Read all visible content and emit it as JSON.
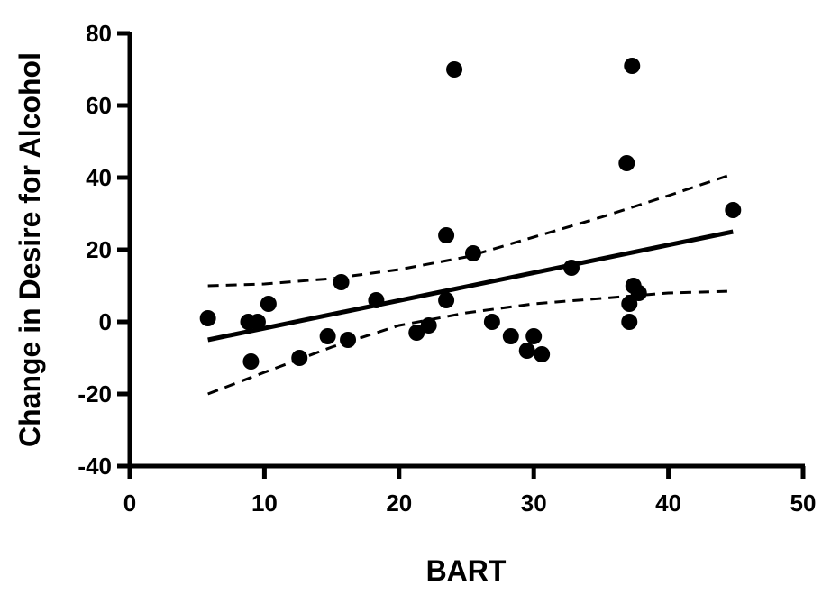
{
  "chart_data": {
    "type": "scatter",
    "xlabel": "BART",
    "ylabel": "Change in Desire for Alcohol",
    "xlim": [
      0,
      50
    ],
    "ylim": [
      -40,
      80
    ],
    "x_ticks": [
      0,
      10,
      20,
      30,
      40,
      50
    ],
    "y_ticks": [
      -40,
      -20,
      0,
      20,
      40,
      60,
      80
    ],
    "x_tick_labels": [
      "0",
      "10",
      "20",
      "30",
      "40",
      "50"
    ],
    "y_tick_labels": [
      "-40",
      "-20",
      "0",
      "20",
      "40",
      "60",
      "80"
    ],
    "grid": false,
    "points": [
      {
        "x": 5.8,
        "y": 1
      },
      {
        "x": 8.8,
        "y": 0
      },
      {
        "x": 9.5,
        "y": 0
      },
      {
        "x": 9.0,
        "y": -11
      },
      {
        "x": 10.3,
        "y": 5
      },
      {
        "x": 12.6,
        "y": -10
      },
      {
        "x": 14.7,
        "y": -4
      },
      {
        "x": 15.7,
        "y": 11
      },
      {
        "x": 16.2,
        "y": -5
      },
      {
        "x": 18.3,
        "y": 6
      },
      {
        "x": 21.3,
        "y": -3
      },
      {
        "x": 22.2,
        "y": -1
      },
      {
        "x": 23.5,
        "y": 24
      },
      {
        "x": 23.5,
        "y": 6
      },
      {
        "x": 24.1,
        "y": 70
      },
      {
        "x": 25.5,
        "y": 19
      },
      {
        "x": 26.9,
        "y": 0
      },
      {
        "x": 28.3,
        "y": -4
      },
      {
        "x": 29.5,
        "y": -8
      },
      {
        "x": 30.0,
        "y": -4
      },
      {
        "x": 30.6,
        "y": -9
      },
      {
        "x": 32.8,
        "y": 15
      },
      {
        "x": 36.9,
        "y": 44
      },
      {
        "x": 37.1,
        "y": 5
      },
      {
        "x": 37.1,
        "y": 0
      },
      {
        "x": 37.3,
        "y": 71
      },
      {
        "x": 37.4,
        "y": 10
      },
      {
        "x": 37.8,
        "y": 8
      },
      {
        "x": 44.8,
        "y": 31
      }
    ],
    "regression_line": {
      "x": [
        5.8,
        44.8
      ],
      "y": [
        -5,
        25
      ]
    },
    "confidence_band_upper": {
      "x": [
        5.8,
        10,
        15,
        20,
        25,
        30,
        35,
        40,
        44.8
      ],
      "y": [
        10,
        10.5,
        12,
        14.5,
        18,
        23.5,
        29,
        35,
        41
      ]
    },
    "confidence_band_lower": {
      "x": [
        5.8,
        10,
        15,
        20,
        25,
        30,
        35,
        40,
        44.8
      ],
      "y": [
        -20,
        -14,
        -7,
        -1,
        2.5,
        5,
        6.5,
        8,
        8.5
      ]
    }
  }
}
